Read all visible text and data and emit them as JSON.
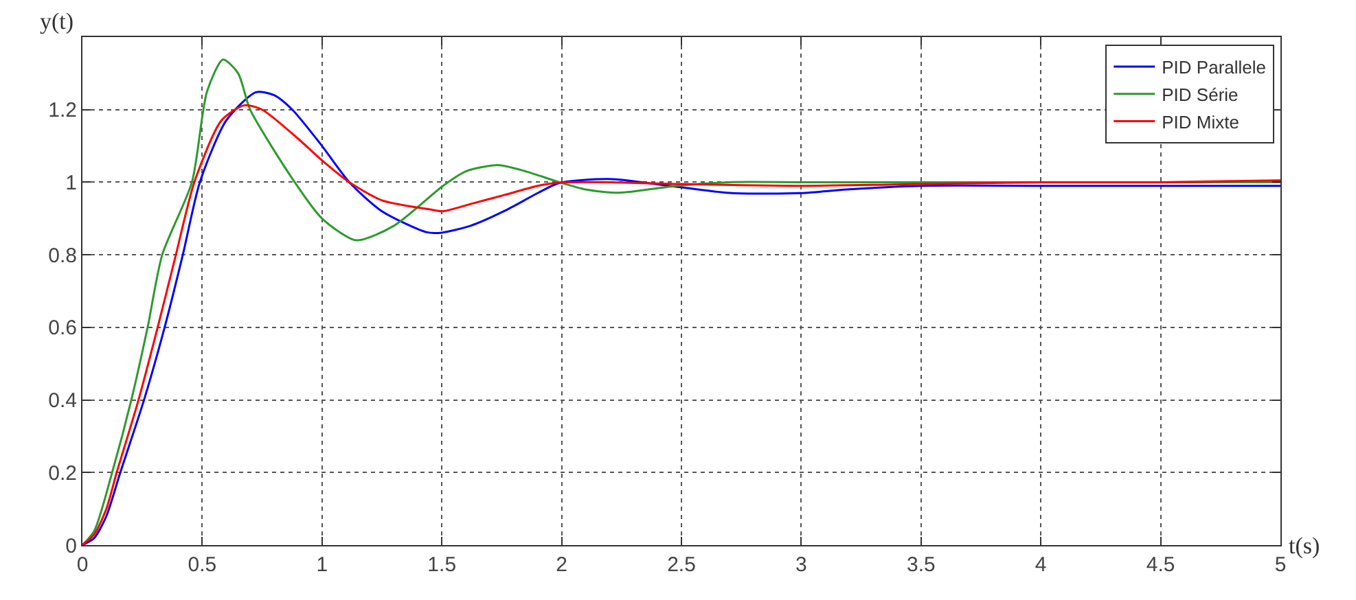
{
  "chart_data": {
    "type": "line",
    "xlabel": "t(s)",
    "ylabel": "y(t)",
    "xlim": [
      0,
      5
    ],
    "ylim": [
      0,
      1.4
    ],
    "xticks": [
      0,
      0.5,
      1,
      1.5,
      2,
      2.5,
      3,
      3.5,
      4,
      4.5,
      5
    ],
    "yticks": [
      0,
      0.2,
      0.4,
      0.6,
      0.8,
      1,
      1.2
    ],
    "grid": true,
    "legend": "top right",
    "marker": "none",
    "line_style": "solid",
    "series": [
      {
        "name": "PID Parallele",
        "color": "#0000ff",
        "x": [
          0,
          0.05,
          0.1,
          0.158,
          0.257,
          0.343,
          0.419,
          0.49,
          0.6,
          0.724,
          0.8,
          0.876,
          1.0,
          1.114,
          1.25,
          1.438,
          1.5,
          1.62,
          1.762,
          1.9,
          1.99,
          2.2,
          2.45,
          2.71,
          3.0,
          3.19,
          3.5,
          4.0,
          4.5,
          5
        ],
        "values": [
          0,
          0.02,
          0.08,
          0.2,
          0.4,
          0.6,
          0.8,
          1,
          1.17,
          1.248,
          1.24,
          1.2,
          1.1,
          1,
          0.92,
          0.862,
          0.861,
          0.88,
          0.921,
          0.97,
          0.998,
          1.009,
          0.99,
          0.97,
          0.97,
          0.98,
          0.99,
          0.99,
          0.99,
          0.99
        ]
      },
      {
        "name": "PID Série",
        "color": "#2e9a2e",
        "x": [
          0,
          0.05,
          0.124,
          0.204,
          0.272,
          0.333,
          0.457,
          0.52,
          0.587,
          0.65,
          0.7,
          0.886,
          1.0,
          1.143,
          1.3,
          1.505,
          1.6,
          1.734,
          1.85,
          1.99,
          2.1,
          2.24,
          2.48,
          2.7,
          3.0,
          3.5,
          4.0,
          4.5,
          5
        ],
        "values": [
          0,
          0.04,
          0.2,
          0.4,
          0.6,
          0.8,
          1,
          1.25,
          1.338,
          1.3,
          1.2,
          1,
          0.9,
          0.84,
          0.88,
          0.99,
          1.03,
          1.047,
          1.03,
          1,
          0.98,
          0.971,
          0.99,
          1.0,
          1.0,
          1.0,
          1.0,
          1.0,
          1.0
        ]
      },
      {
        "name": "PID Mixte",
        "color": "#ff0000",
        "x": [
          0,
          0.05,
          0.1,
          0.143,
          0.234,
          0.314,
          0.39,
          0.467,
          0.58,
          0.676,
          0.75,
          0.9,
          1.0,
          1.114,
          1.25,
          1.45,
          1.505,
          1.62,
          1.762,
          1.9,
          1.99,
          2.2,
          2.5,
          3.0,
          3.5,
          4.0,
          4.5,
          5
        ],
        "values": [
          0,
          0.03,
          0.1,
          0.2,
          0.4,
          0.6,
          0.8,
          1,
          1.17,
          1.212,
          1.2,
          1.12,
          1.06,
          1,
          0.95,
          0.925,
          0.92,
          0.94,
          0.965,
          0.99,
          0.999,
          1.0,
          0.995,
          0.99,
          0.995,
          1.0,
          1.0,
          1.005
        ]
      }
    ]
  }
}
